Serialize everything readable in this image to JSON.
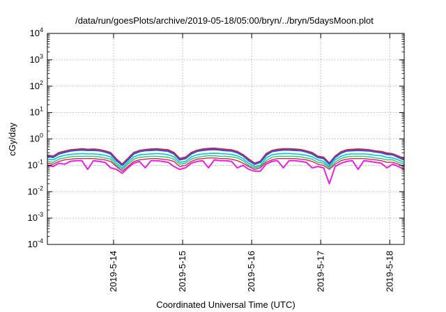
{
  "chart_data": {
    "type": "line",
    "title": "/data/run/goesPlots/archive/2019-05-18/05:00/bryn/../bryn/5daysMoon.plot",
    "xlabel": "Coordinated Universal Time (UTC)",
    "ylabel": "cGy/day",
    "x_scale": "time",
    "y_scale": "log",
    "xlim": [
      "2019-05-13T01:00",
      "2019-05-18T05:00"
    ],
    "ylim": [
      0.0001,
      10000
    ],
    "grid": true,
    "legend": "none",
    "x_ticks": [
      {
        "value": "2019-05-14T00:00",
        "label": "2019-5-14"
      },
      {
        "value": "2019-05-15T00:00",
        "label": "2019-5-15"
      },
      {
        "value": "2019-05-16T00:00",
        "label": "2019-5-16"
      },
      {
        "value": "2019-05-17T00:00",
        "label": "2019-5-17"
      },
      {
        "value": "2019-05-18T00:00",
        "label": "2019-5-18"
      }
    ],
    "y_ticks": [
      {
        "value": 0.0001,
        "base": "10",
        "exp": "-4"
      },
      {
        "value": 0.001,
        "base": "10",
        "exp": "-3"
      },
      {
        "value": 0.01,
        "base": "10",
        "exp": "-2"
      },
      {
        "value": 0.1,
        "base": "10",
        "exp": "-1"
      },
      {
        "value": 1,
        "base": "10",
        "exp": "0"
      },
      {
        "value": 10,
        "base": "10",
        "exp": "1"
      },
      {
        "value": 100,
        "base": "10",
        "exp": "2"
      },
      {
        "value": 1000,
        "base": "10",
        "exp": "3"
      },
      {
        "value": 10000,
        "base": "10",
        "exp": "4"
      }
    ],
    "x": [
      "2019-05-13T01:00",
      "2019-05-13T03:00",
      "2019-05-13T05:00",
      "2019-05-13T07:00",
      "2019-05-13T09:00",
      "2019-05-13T11:00",
      "2019-05-13T13:00",
      "2019-05-13T15:00",
      "2019-05-13T17:00",
      "2019-05-13T19:00",
      "2019-05-13T21:00",
      "2019-05-13T23:00",
      "2019-05-14T01:00",
      "2019-05-14T03:00",
      "2019-05-14T05:00",
      "2019-05-14T07:00",
      "2019-05-14T09:00",
      "2019-05-14T11:00",
      "2019-05-14T13:00",
      "2019-05-14T15:00",
      "2019-05-14T17:00",
      "2019-05-14T19:00",
      "2019-05-14T21:00",
      "2019-05-14T23:00",
      "2019-05-15T01:00",
      "2019-05-15T03:00",
      "2019-05-15T05:00",
      "2019-05-15T07:00",
      "2019-05-15T09:00",
      "2019-05-15T11:00",
      "2019-05-15T13:00",
      "2019-05-15T15:00",
      "2019-05-15T17:00",
      "2019-05-15T19:00",
      "2019-05-15T21:00",
      "2019-05-15T23:00",
      "2019-05-16T01:00",
      "2019-05-16T03:00",
      "2019-05-16T05:00",
      "2019-05-16T07:00",
      "2019-05-16T09:00",
      "2019-05-16T11:00",
      "2019-05-16T13:00",
      "2019-05-16T15:00",
      "2019-05-16T17:00",
      "2019-05-16T19:00",
      "2019-05-16T21:00",
      "2019-05-16T23:00",
      "2019-05-17T01:00",
      "2019-05-17T03:00",
      "2019-05-17T05:00",
      "2019-05-17T07:00",
      "2019-05-17T09:00",
      "2019-05-17T11:00",
      "2019-05-17T13:00",
      "2019-05-17T15:00",
      "2019-05-17T17:00",
      "2019-05-17T19:00",
      "2019-05-17T21:00",
      "2019-05-17T23:00",
      "2019-05-18T01:00",
      "2019-05-18T03:00",
      "2019-05-18T05:00"
    ],
    "series": [
      {
        "color": "#e8192c",
        "width": 2.2,
        "values": [
          0.24,
          0.22,
          0.3,
          0.34,
          0.38,
          0.4,
          0.42,
          0.4,
          0.41,
          0.39,
          0.35,
          0.3,
          0.17,
          0.11,
          0.18,
          0.3,
          0.36,
          0.39,
          0.41,
          0.42,
          0.4,
          0.38,
          0.3,
          0.18,
          0.2,
          0.3,
          0.37,
          0.41,
          0.43,
          0.44,
          0.42,
          0.4,
          0.38,
          0.33,
          0.25,
          0.17,
          0.12,
          0.14,
          0.27,
          0.36,
          0.4,
          0.42,
          0.42,
          0.41,
          0.39,
          0.35,
          0.3,
          0.22,
          0.2,
          0.12,
          0.22,
          0.32,
          0.38,
          0.4,
          0.41,
          0.4,
          0.38,
          0.35,
          0.33,
          0.29,
          0.27,
          0.22,
          0.18
        ]
      },
      {
        "color": "#2f56d6",
        "width": 2.2,
        "values": [
          0.22,
          0.2,
          0.27,
          0.31,
          0.35,
          0.37,
          0.38,
          0.37,
          0.37,
          0.36,
          0.32,
          0.27,
          0.15,
          0.1,
          0.16,
          0.27,
          0.33,
          0.36,
          0.37,
          0.38,
          0.36,
          0.34,
          0.27,
          0.16,
          0.18,
          0.27,
          0.34,
          0.37,
          0.39,
          0.4,
          0.38,
          0.36,
          0.35,
          0.3,
          0.23,
          0.15,
          0.11,
          0.13,
          0.24,
          0.33,
          0.36,
          0.38,
          0.38,
          0.37,
          0.36,
          0.32,
          0.27,
          0.2,
          0.18,
          0.11,
          0.2,
          0.29,
          0.35,
          0.36,
          0.37,
          0.36,
          0.35,
          0.32,
          0.3,
          0.26,
          0.25,
          0.2,
          0.16
        ]
      },
      {
        "color": "#00c8cc",
        "width": 1.6,
        "values": [
          0.17,
          0.16,
          0.21,
          0.24,
          0.26,
          0.27,
          0.28,
          0.27,
          0.27,
          0.26,
          0.24,
          0.21,
          0.12,
          0.08,
          0.13,
          0.21,
          0.25,
          0.26,
          0.27,
          0.28,
          0.27,
          0.25,
          0.21,
          0.13,
          0.14,
          0.21,
          0.25,
          0.27,
          0.28,
          0.29,
          0.28,
          0.27,
          0.26,
          0.23,
          0.18,
          0.12,
          0.09,
          0.1,
          0.19,
          0.25,
          0.27,
          0.28,
          0.28,
          0.27,
          0.26,
          0.24,
          0.21,
          0.16,
          0.14,
          0.09,
          0.16,
          0.22,
          0.26,
          0.27,
          0.27,
          0.27,
          0.26,
          0.24,
          0.23,
          0.2,
          0.19,
          0.16,
          0.13
        ]
      },
      {
        "color": "#26c46b",
        "width": 1.4,
        "values": [
          0.14,
          0.13,
          0.17,
          0.19,
          0.21,
          0.22,
          0.22,
          0.22,
          0.22,
          0.21,
          0.19,
          0.17,
          0.1,
          0.07,
          0.11,
          0.17,
          0.2,
          0.21,
          0.22,
          0.22,
          0.21,
          0.2,
          0.17,
          0.11,
          0.12,
          0.17,
          0.2,
          0.22,
          0.23,
          0.23,
          0.22,
          0.22,
          0.21,
          0.19,
          0.15,
          0.1,
          0.08,
          0.09,
          0.15,
          0.2,
          0.22,
          0.22,
          0.22,
          0.22,
          0.21,
          0.19,
          0.17,
          0.13,
          0.12,
          0.08,
          0.13,
          0.18,
          0.21,
          0.22,
          0.22,
          0.22,
          0.21,
          0.19,
          0.18,
          0.16,
          0.16,
          0.13,
          0.11
        ]
      },
      {
        "color": "#d9204f",
        "width": 1.4,
        "values": [
          0.12,
          0.11,
          0.14,
          0.16,
          0.17,
          0.18,
          0.18,
          0.18,
          0.18,
          0.17,
          0.16,
          0.14,
          0.09,
          0.06,
          0.09,
          0.14,
          0.16,
          0.17,
          0.18,
          0.18,
          0.17,
          0.16,
          0.14,
          0.09,
          0.1,
          0.14,
          0.17,
          0.18,
          0.19,
          0.19,
          0.18,
          0.18,
          0.17,
          0.15,
          0.12,
          0.09,
          0.07,
          0.08,
          0.13,
          0.16,
          0.18,
          0.18,
          0.18,
          0.18,
          0.17,
          0.16,
          0.14,
          0.11,
          0.1,
          0.07,
          0.11,
          0.15,
          0.17,
          0.18,
          0.18,
          0.18,
          0.17,
          0.16,
          0.15,
          0.13,
          0.13,
          0.11,
          0.09
        ]
      },
      {
        "color": "#ee1de6",
        "width": 2.0,
        "values": [
          0.1,
          0.09,
          0.12,
          0.11,
          0.14,
          0.15,
          0.15,
          0.07,
          0.15,
          0.14,
          0.13,
          0.08,
          0.07,
          0.05,
          0.08,
          0.12,
          0.14,
          0.08,
          0.15,
          0.15,
          0.14,
          0.13,
          0.09,
          0.07,
          0.08,
          0.12,
          0.14,
          0.15,
          0.08,
          0.16,
          0.15,
          0.15,
          0.14,
          0.08,
          0.1,
          0.07,
          0.06,
          0.06,
          0.11,
          0.14,
          0.15,
          0.08,
          0.15,
          0.15,
          0.14,
          0.13,
          0.08,
          0.09,
          0.08,
          0.02,
          0.09,
          0.12,
          0.14,
          0.15,
          0.07,
          0.15,
          0.14,
          0.13,
          0.12,
          0.08,
          0.11,
          0.09,
          0.07
        ]
      }
    ]
  }
}
